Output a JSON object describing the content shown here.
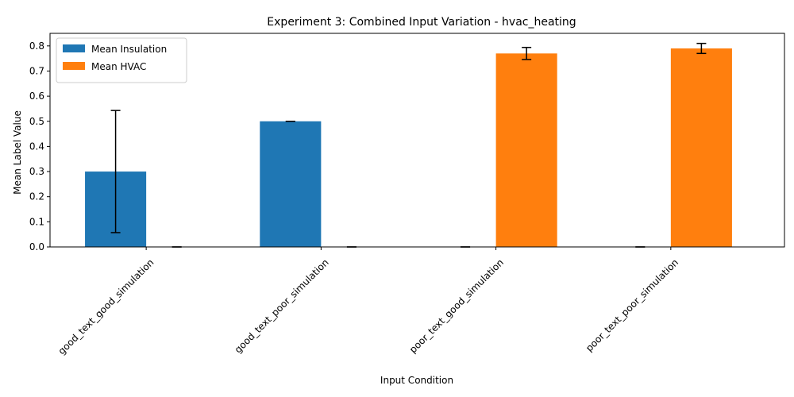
{
  "chart_data": {
    "type": "bar",
    "title": "Experiment 3: Combined Input Variation - hvac_heating",
    "xlabel": "Input Condition",
    "ylabel": "Mean Label Value",
    "categories": [
      "good_text_good_simulation",
      "good_text_poor_simulation",
      "poor_text_good_simulation",
      "poor_text_poor_simulation"
    ],
    "series": [
      {
        "name": "Mean Insulation",
        "color": "#1f77b4",
        "values": [
          0.3,
          0.5,
          0.0,
          0.0
        ],
        "errors": [
          0.243,
          0.0,
          0.0,
          0.0
        ]
      },
      {
        "name": "Mean HVAC",
        "color": "#ff7f0e",
        "values": [
          0.0,
          0.0,
          0.77,
          0.79
        ],
        "errors": [
          0.0,
          0.0,
          0.024,
          0.02
        ]
      }
    ],
    "ylim": [
      0,
      0.85
    ],
    "yticks": [
      0.0,
      0.1,
      0.2,
      0.3,
      0.4,
      0.5,
      0.6,
      0.7,
      0.8
    ],
    "ytick_labels": [
      "0.0",
      "0.1",
      "0.2",
      "0.3",
      "0.4",
      "0.5",
      "0.6",
      "0.7",
      "0.8"
    ],
    "grid": false,
    "legend_position": "top-left"
  }
}
